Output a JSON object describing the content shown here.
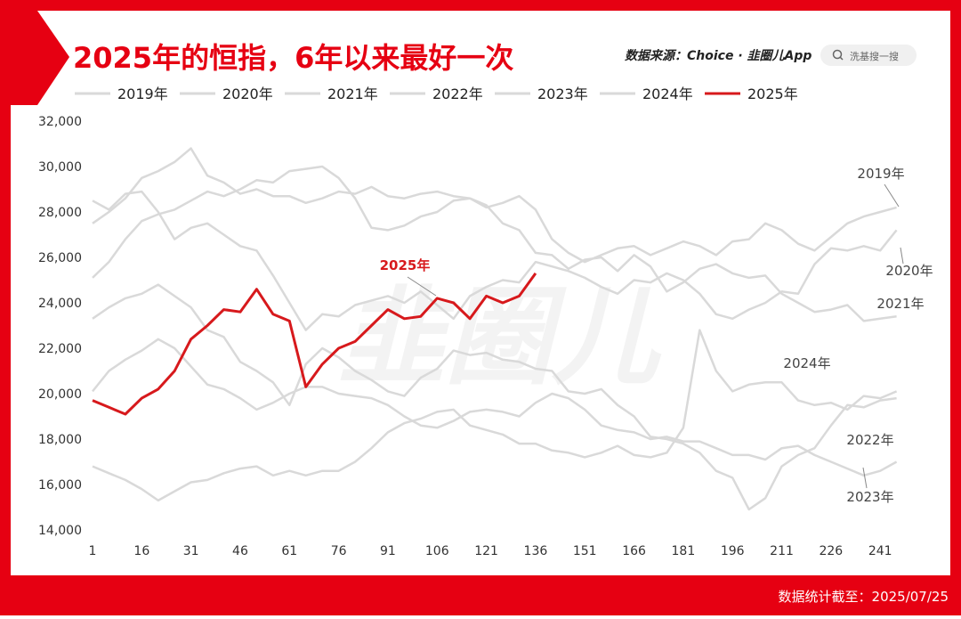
{
  "header": {
    "title": "2025年的恒指，6年以来最好一次",
    "source": "数据来源：Choice · 韭圈儿App",
    "search": "洗基搜一搜"
  },
  "footer": {
    "note": "数据统计截至：2025/07/25"
  },
  "watermark": "韭圈儿",
  "chart_data": {
    "type": "line",
    "x": [
      1,
      6,
      11,
      16,
      21,
      26,
      31,
      36,
      41,
      46,
      51,
      56,
      61,
      66,
      71,
      76,
      81,
      86,
      91,
      96,
      101,
      106,
      111,
      116,
      121,
      126,
      131,
      136,
      141,
      146,
      151,
      156,
      161,
      166,
      171,
      176,
      181,
      186,
      191,
      196,
      201,
      206,
      211,
      216,
      221,
      226,
      231,
      236,
      241,
      246
    ],
    "xlim": [
      1,
      248
    ],
    "xticks": [
      1,
      16,
      31,
      46,
      61,
      76,
      91,
      106,
      121,
      136,
      151,
      166,
      181,
      196,
      211,
      226,
      241
    ],
    "ylim": [
      14000,
      32000
    ],
    "yticks": [
      {
        "value": 14000,
        "label": "14,000"
      },
      {
        "value": 16000,
        "label": "16,000"
      },
      {
        "value": 18000,
        "label": "18,000"
      },
      {
        "value": 20000,
        "label": "20,000"
      },
      {
        "value": 22000,
        "label": "22,000"
      },
      {
        "value": 24000,
        "label": "24,000"
      },
      {
        "value": 26000,
        "label": "26,000"
      },
      {
        "value": 28000,
        "label": "28,000"
      },
      {
        "value": 30000,
        "label": "30,000"
      },
      {
        "value": 32000,
        "label": "32,000"
      }
    ],
    "series": [
      {
        "name": "2019年",
        "color": "#d9d9d9",
        "values": [
          25100,
          25800,
          26800,
          27600,
          27900,
          28100,
          28500,
          28900,
          28700,
          29000,
          29400,
          29300,
          29800,
          29900,
          30000,
          29500,
          28600,
          27300,
          27200,
          27400,
          27800,
          28000,
          28500,
          28600,
          28200,
          28400,
          28700,
          28100,
          26800,
          26200,
          25800,
          26100,
          26400,
          26500,
          26100,
          26400,
          26700,
          26500,
          26100,
          26700,
          26800,
          27500,
          27200,
          26600,
          26300,
          26900,
          27500,
          27800,
          28000,
          28200
        ]
      },
      {
        "name": "2020年",
        "color": "#d9d9d9",
        "values": [
          28500,
          28100,
          28800,
          28900,
          28000,
          26800,
          27300,
          27500,
          27000,
          26500,
          26300,
          25200,
          24000,
          22800,
          23500,
          23400,
          23900,
          24100,
          24300,
          24000,
          24500,
          23900,
          23300,
          24300,
          24700,
          25000,
          24900,
          25800,
          25600,
          25400,
          25100,
          24700,
          24400,
          25000,
          24900,
          25300,
          25000,
          24400,
          23500,
          23300,
          23700,
          24000,
          24500,
          24400,
          25700,
          26400,
          26300,
          26500,
          26300,
          27200
        ]
      },
      {
        "name": "2021年",
        "color": "#d9d9d9",
        "values": [
          27500,
          28000,
          28600,
          29500,
          29800,
          30200,
          30800,
          29600,
          29300,
          28800,
          29000,
          28700,
          28700,
          28400,
          28600,
          28900,
          28800,
          29100,
          28700,
          28600,
          28800,
          28900,
          28700,
          28600,
          28300,
          27500,
          27200,
          26200,
          26100,
          25500,
          25900,
          26000,
          25400,
          26100,
          25600,
          24500,
          24900,
          25500,
          25700,
          25300,
          25100,
          25200,
          24400,
          24000,
          23600,
          23700,
          23900,
          23200,
          23300,
          23400
        ]
      },
      {
        "name": "2022年",
        "color": "#d9d9d9",
        "values": [
          23300,
          23800,
          24200,
          24400,
          24800,
          24300,
          23800,
          22800,
          22500,
          21400,
          21000,
          20500,
          19500,
          21300,
          22000,
          21600,
          21000,
          20600,
          20100,
          19900,
          20700,
          21100,
          21900,
          21700,
          21800,
          21500,
          21400,
          21100,
          21000,
          20100,
          20000,
          20200,
          19500,
          19000,
          18100,
          18000,
          17800,
          17400,
          16600,
          16300,
          14900,
          15400,
          16800,
          17300,
          17600,
          18600,
          19500,
          19400,
          19700,
          19800
        ]
      },
      {
        "name": "2023年",
        "color": "#d9d9d9",
        "values": [
          20100,
          21000,
          21500,
          21900,
          22400,
          22000,
          21200,
          20400,
          20200,
          19800,
          19300,
          19600,
          20000,
          20300,
          20300,
          20000,
          19900,
          19800,
          19500,
          19000,
          18600,
          18500,
          18800,
          19200,
          19300,
          19200,
          19000,
          19600,
          20000,
          19800,
          19300,
          18600,
          18400,
          18300,
          18000,
          18100,
          17900,
          17900,
          17600,
          17300,
          17300,
          17100,
          17600,
          17700,
          17300,
          17000,
          16700,
          16400,
          16600,
          17000
        ]
      },
      {
        "name": "2024年",
        "color": "#d9d9d9",
        "values": [
          16800,
          16500,
          16200,
          15800,
          15300,
          15700,
          16100,
          16200,
          16500,
          16700,
          16800,
          16400,
          16600,
          16400,
          16600,
          16600,
          17000,
          17600,
          18300,
          18700,
          18900,
          19200,
          19300,
          18600,
          18400,
          18200,
          17800,
          17800,
          17500,
          17400,
          17200,
          17400,
          17700,
          17300,
          17200,
          17400,
          18500,
          22800,
          21000,
          20100,
          20400,
          20500,
          20500,
          19700,
          19500,
          19600,
          19300,
          19900,
          19800,
          20100
        ]
      },
      {
        "name": "2025年",
        "color": "#d7191c",
        "values": [
          19700,
          19400,
          19100,
          19800,
          20200,
          21000,
          22400,
          23000,
          23700,
          23600,
          24600,
          23500,
          23200,
          20300,
          21300,
          22000,
          22300,
          23000,
          23700,
          23300,
          23400,
          24200,
          24000,
          23300,
          24300,
          24000,
          24300,
          25300,
          null,
          null,
          null,
          null,
          null,
          null,
          null,
          null,
          null,
          null,
          null,
          null,
          null,
          null,
          null,
          null,
          null,
          null,
          null,
          null,
          null,
          null
        ]
      }
    ],
    "annotations": [
      {
        "text": "2019年"
      },
      {
        "text": "2020年"
      },
      {
        "text": "2021年"
      },
      {
        "text": "2024年"
      },
      {
        "text": "2022年"
      },
      {
        "text": "2023年"
      },
      {
        "text": "2025年"
      }
    ]
  }
}
